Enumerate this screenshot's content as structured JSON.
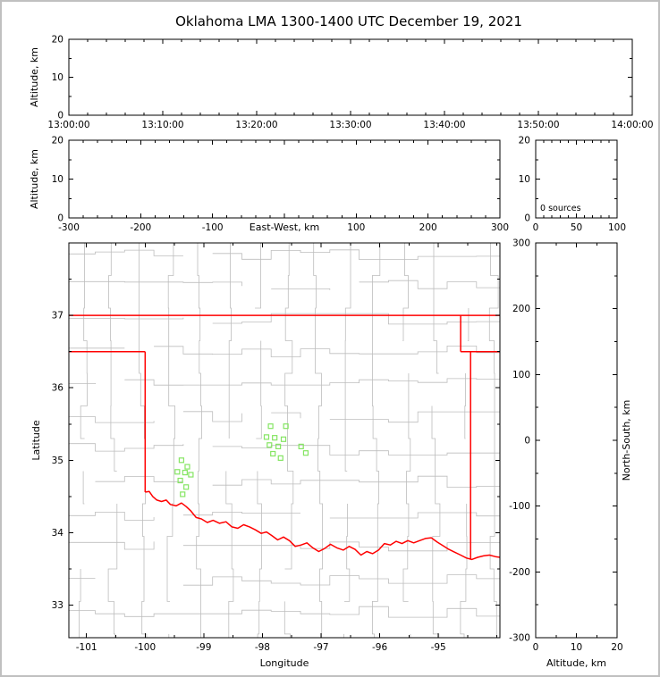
{
  "figure": {
    "title": "Oklahoma LMA 1300-1400 UTC December 19, 2021",
    "background": "#ffffff",
    "frame_color": "#c0c0c0"
  },
  "colors": {
    "axis": "#000000",
    "text": "#000000",
    "county_lines": "#bdbdbd",
    "state_lines": "#ff0000",
    "station_marker": "#85e563"
  },
  "chart_data": [
    {
      "id": "time_height",
      "type": "scatter",
      "xlabel": "",
      "ylabel": "Altitude, km",
      "xlim": [
        0,
        3600
      ],
      "x_ticks": [
        0,
        600,
        1200,
        1800,
        2400,
        3000,
        3600
      ],
      "x_tick_labels": [
        "13:00:00",
        "13:10:00",
        "13:20:00",
        "13:30:00",
        "13:40:00",
        "13:50:00",
        "14:00:00"
      ],
      "ylim": [
        0,
        20
      ],
      "y_ticks": [
        0,
        10,
        20
      ],
      "y_tick_labels": [
        "0",
        "10",
        "20"
      ],
      "points": []
    },
    {
      "id": "ew_height",
      "type": "scatter",
      "xlabel": "East-West, km",
      "ylabel": "Altitude, km",
      "xlim": [
        -300,
        300
      ],
      "x_ticks": [
        -300,
        -200,
        -100,
        0,
        100,
        200,
        300
      ],
      "x_tick_labels": [
        "-300",
        "-200",
        "-100",
        "",
        "100",
        "200",
        "300"
      ],
      "ylim": [
        0,
        20
      ],
      "y_ticks": [
        0,
        10,
        20
      ],
      "y_tick_labels": [
        "0",
        "10",
        "20"
      ],
      "points": []
    },
    {
      "id": "altitude_histogram",
      "type": "line",
      "xlabel": "",
      "ylabel": "",
      "annotation": "0 sources",
      "xlim": [
        0,
        100
      ],
      "x_ticks": [
        0,
        50,
        100
      ],
      "x_tick_labels": [
        "0",
        "50",
        "100"
      ],
      "ylim": [
        0,
        20
      ],
      "y_ticks": [
        0,
        10,
        20
      ],
      "y_tick_labels": [
        "0",
        "10",
        "20"
      ],
      "points": []
    },
    {
      "id": "plan_view",
      "type": "scatter",
      "xlabel": "Longitude",
      "ylabel": "Latitude",
      "xlim": [
        -101.3,
        -93.95
      ],
      "x_ticks": [
        -101,
        -100,
        -99,
        -98,
        -97,
        -96,
        -95
      ],
      "x_tick_labels": [
        "-101",
        "-100",
        "-99",
        "-98",
        "-97",
        "-96",
        "-95"
      ],
      "ylim": [
        32.55,
        38.0
      ],
      "y_ticks": [
        33,
        34,
        35,
        36,
        37
      ],
      "y_tick_labels": [
        "33",
        "34",
        "35",
        "36",
        "37"
      ],
      "points": [],
      "stations": [
        [
          -99.38,
          35.0
        ],
        [
          -99.28,
          34.91
        ],
        [
          -99.45,
          34.84
        ],
        [
          -99.32,
          34.83
        ],
        [
          -99.22,
          34.8
        ],
        [
          -99.4,
          34.72
        ],
        [
          -99.3,
          34.63
        ],
        [
          -99.36,
          34.53
        ],
        [
          -97.86,
          35.47
        ],
        [
          -97.6,
          35.47
        ],
        [
          -97.93,
          35.32
        ],
        [
          -97.79,
          35.31
        ],
        [
          -97.64,
          35.29
        ],
        [
          -97.88,
          35.21
        ],
        [
          -97.73,
          35.19
        ],
        [
          -97.82,
          35.09
        ],
        [
          -97.69,
          35.03
        ],
        [
          -97.34,
          35.19
        ],
        [
          -97.26,
          35.1
        ]
      ],
      "state_lines": [
        [
          [
            -101.3,
            37.0
          ],
          [
            -93.95,
            37.0
          ]
        ],
        [
          [
            -101.3,
            36.5
          ],
          [
            -100.0,
            36.5
          ]
        ],
        [
          [
            -100.0,
            36.5
          ],
          [
            -100.0,
            34.56
          ]
        ],
        [
          [
            -94.62,
            37.0
          ],
          [
            -94.62,
            36.5
          ]
        ],
        [
          [
            -94.62,
            36.5
          ],
          [
            -93.95,
            36.5
          ]
        ],
        [
          [
            -94.45,
            36.5
          ],
          [
            -94.45,
            33.64
          ]
        ]
      ],
      "red_river": [
        [
          -100.0,
          34.56
        ],
        [
          -99.93,
          34.57
        ],
        [
          -99.87,
          34.5
        ],
        [
          -99.8,
          34.45
        ],
        [
          -99.72,
          34.43
        ],
        [
          -99.64,
          34.45
        ],
        [
          -99.57,
          34.39
        ],
        [
          -99.47,
          34.37
        ],
        [
          -99.38,
          34.41
        ],
        [
          -99.3,
          34.36
        ],
        [
          -99.22,
          34.3
        ],
        [
          -99.13,
          34.21
        ],
        [
          -99.04,
          34.19
        ],
        [
          -98.94,
          34.14
        ],
        [
          -98.84,
          34.17
        ],
        [
          -98.73,
          34.13
        ],
        [
          -98.62,
          34.15
        ],
        [
          -98.52,
          34.08
        ],
        [
          -98.42,
          34.06
        ],
        [
          -98.32,
          34.11
        ],
        [
          -98.22,
          34.08
        ],
        [
          -98.12,
          34.04
        ],
        [
          -98.02,
          33.99
        ],
        [
          -97.93,
          34.01
        ],
        [
          -97.84,
          33.96
        ],
        [
          -97.74,
          33.9
        ],
        [
          -97.64,
          33.94
        ],
        [
          -97.54,
          33.89
        ],
        [
          -97.44,
          33.81
        ],
        [
          -97.34,
          33.83
        ],
        [
          -97.24,
          33.86
        ],
        [
          -97.14,
          33.79
        ],
        [
          -97.04,
          33.74
        ],
        [
          -96.94,
          33.78
        ],
        [
          -96.84,
          33.84
        ],
        [
          -96.73,
          33.79
        ],
        [
          -96.62,
          33.76
        ],
        [
          -96.52,
          33.81
        ],
        [
          -96.42,
          33.77
        ],
        [
          -96.32,
          33.69
        ],
        [
          -96.22,
          33.74
        ],
        [
          -96.12,
          33.71
        ],
        [
          -96.02,
          33.76
        ],
        [
          -95.92,
          33.85
        ],
        [
          -95.82,
          33.83
        ],
        [
          -95.72,
          33.88
        ],
        [
          -95.62,
          33.85
        ],
        [
          -95.52,
          33.89
        ],
        [
          -95.42,
          33.86
        ],
        [
          -95.32,
          33.89
        ],
        [
          -95.22,
          33.92
        ],
        [
          -95.12,
          33.93
        ],
        [
          -95.02,
          33.87
        ],
        [
          -94.92,
          33.82
        ],
        [
          -94.82,
          33.77
        ],
        [
          -94.72,
          33.73
        ],
        [
          -94.62,
          33.69
        ],
        [
          -94.52,
          33.65
        ],
        [
          -94.43,
          33.63
        ],
        [
          -94.33,
          33.66
        ],
        [
          -94.23,
          33.68
        ],
        [
          -94.13,
          33.69
        ],
        [
          -94.03,
          33.67
        ],
        [
          -93.95,
          33.66
        ]
      ],
      "county_grid": {
        "lon0": -101.05,
        "lon1": -94.05,
        "lat0": 32.55,
        "lat1": 38.0,
        "lon_step": 0.5,
        "lat_step": 0.45,
        "jitter": 0.16,
        "skip": 0.1,
        "seed": 42
      }
    },
    {
      "id": "ns_height",
      "type": "scatter",
      "xlabel": "Altitude, km",
      "ylabel": "North-South, km",
      "xlim": [
        0,
        20
      ],
      "x_ticks": [
        0,
        10,
        20
      ],
      "x_tick_labels": [
        "0",
        "10",
        "20"
      ],
      "ylim": [
        -300,
        300
      ],
      "y_ticks": [
        -300,
        -200,
        -100,
        0,
        100,
        200,
        300
      ],
      "y_tick_labels": [
        "-300",
        "-200",
        "-100",
        "0",
        "100",
        "200",
        "300"
      ],
      "points": []
    }
  ]
}
